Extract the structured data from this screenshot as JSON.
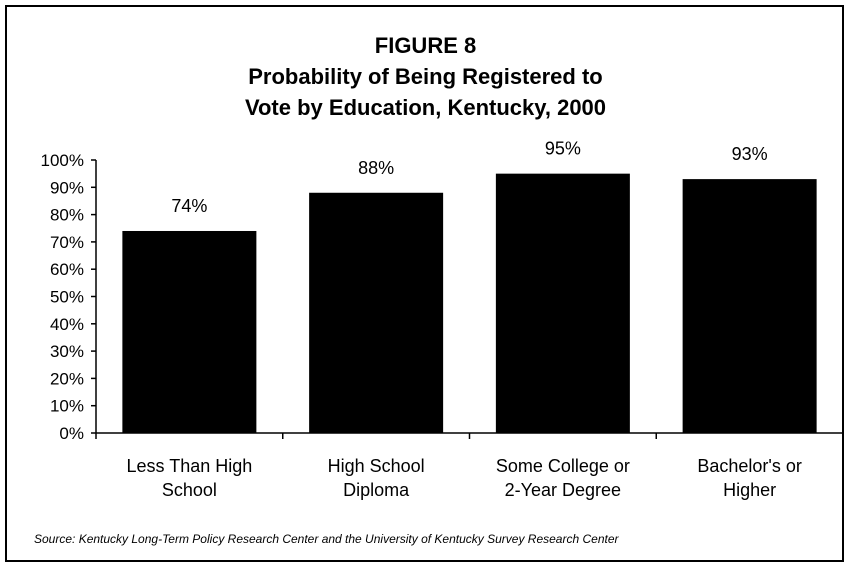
{
  "chart_data": {
    "type": "bar",
    "title": [
      "FIGURE  8",
      "Probability of Being Registered to",
      "Vote by Education, Kentucky, 2000"
    ],
    "categories": [
      [
        "Less Than High",
        "School"
      ],
      [
        "High School",
        "Diploma"
      ],
      [
        "Some College or",
        "2-Year Degree"
      ],
      [
        "Bachelor's or",
        "Higher"
      ]
    ],
    "values": [
      74,
      88,
      95,
      93
    ],
    "data_labels": [
      "74%",
      "88%",
      "95%",
      "93%"
    ],
    "ylim": [
      0,
      100
    ],
    "yticks": [
      0,
      10,
      20,
      30,
      40,
      50,
      60,
      70,
      80,
      90,
      100
    ],
    "ytick_labels": [
      "0%",
      "10%",
      "20%",
      "30%",
      "40%",
      "50%",
      "60%",
      "70%",
      "80%",
      "90%",
      "100%"
    ],
    "bar_color": "#000000",
    "grid": false,
    "legend": "none"
  },
  "source": "Source: Kentucky Long-Term Policy Research Center and the University of Kentucky Survey Research Center"
}
